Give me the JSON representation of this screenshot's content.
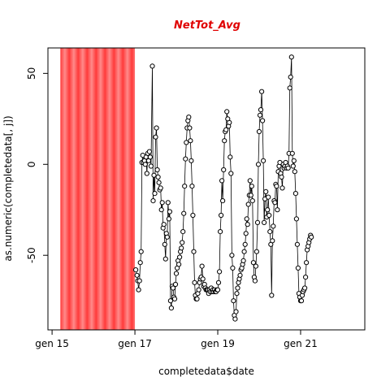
{
  "chart_data": {
    "type": "scatter",
    "title": "NetTot_Avg",
    "xlabel": "completedata$date",
    "ylabel": "as.numeric(completedata[, j])",
    "x_ticks": [
      {
        "value": 2015.0,
        "label": "gen 15"
      },
      {
        "value": 2017.0,
        "label": "gen 17"
      },
      {
        "value": 2019.0,
        "label": "gen 19"
      },
      {
        "value": 2021.0,
        "label": "gen 21"
      }
    ],
    "y_ticks": [
      {
        "value": -50,
        "label": "-50"
      },
      {
        "value": 0,
        "label": "0"
      },
      {
        "value": 50,
        "label": "50"
      }
    ],
    "xlim": [
      2014.9,
      2022.55
    ],
    "ylim": [
      -91,
      64
    ],
    "missing_band": {
      "x_start": 2015.2,
      "x_end": 2017.0,
      "color": "#ff4444"
    },
    "grid": false,
    "series": [
      {
        "values": [
          [
            2017.02,
            -58
          ],
          [
            2017.05,
            -61
          ],
          [
            2017.07,
            -64
          ],
          [
            2017.09,
            -69
          ],
          [
            2017.11,
            -64
          ],
          [
            2017.13,
            -54
          ],
          [
            2017.15,
            -48
          ],
          [
            2017.17,
            1
          ],
          [
            2017.19,
            5
          ],
          [
            2017.21,
            1
          ],
          [
            2017.23,
            2
          ],
          [
            2017.25,
            0
          ],
          [
            2017.27,
            4
          ],
          [
            2017.29,
            -5
          ],
          [
            2017.31,
            6
          ],
          [
            2017.33,
            2
          ],
          [
            2017.35,
            7
          ],
          [
            2017.37,
            4
          ],
          [
            2017.39,
            -1
          ],
          [
            2017.42,
            54
          ],
          [
            2017.44,
            -20
          ],
          [
            2017.46,
            -6
          ],
          [
            2017.48,
            -16
          ],
          [
            2017.5,
            15
          ],
          [
            2017.52,
            20
          ],
          [
            2017.54,
            -3
          ],
          [
            2017.56,
            -7
          ],
          [
            2017.58,
            -10
          ],
          [
            2017.6,
            -14
          ],
          [
            2017.62,
            -13
          ],
          [
            2017.64,
            -25
          ],
          [
            2017.66,
            -21
          ],
          [
            2017.68,
            -35
          ],
          [
            2017.7,
            -33
          ],
          [
            2017.72,
            -44
          ],
          [
            2017.74,
            -52
          ],
          [
            2017.76,
            -38
          ],
          [
            2017.78,
            -40
          ],
          [
            2017.8,
            -21
          ],
          [
            2017.82,
            -30
          ],
          [
            2017.84,
            -26
          ],
          [
            2017.86,
            -75
          ],
          [
            2017.88,
            -79
          ],
          [
            2017.9,
            -67
          ],
          [
            2017.92,
            -68
          ],
          [
            2017.94,
            -73
          ],
          [
            2017.96,
            -74
          ],
          [
            2017.98,
            -66
          ],
          [
            2018.0,
            -60
          ],
          [
            2018.02,
            -57
          ],
          [
            2018.04,
            -53
          ],
          [
            2018.06,
            -55
          ],
          [
            2018.08,
            -51
          ],
          [
            2018.1,
            -48
          ],
          [
            2018.12,
            -46
          ],
          [
            2018.14,
            -43
          ],
          [
            2018.16,
            -37
          ],
          [
            2018.18,
            -27
          ],
          [
            2018.2,
            -12
          ],
          [
            2018.22,
            3
          ],
          [
            2018.24,
            12
          ],
          [
            2018.26,
            20
          ],
          [
            2018.28,
            24
          ],
          [
            2018.3,
            26
          ],
          [
            2018.32,
            20
          ],
          [
            2018.34,
            13
          ],
          [
            2018.36,
            2
          ],
          [
            2018.38,
            -12
          ],
          [
            2018.4,
            -28
          ],
          [
            2018.42,
            -48
          ],
          [
            2018.44,
            -65
          ],
          [
            2018.46,
            -72
          ],
          [
            2018.48,
            -74
          ],
          [
            2018.5,
            -74
          ],
          [
            2018.52,
            -71
          ],
          [
            2018.54,
            -69
          ],
          [
            2018.56,
            -65
          ],
          [
            2018.58,
            -63
          ],
          [
            2018.6,
            -62
          ],
          [
            2018.62,
            -56
          ],
          [
            2018.64,
            -63
          ],
          [
            2018.66,
            -67
          ],
          [
            2018.68,
            -66
          ],
          [
            2018.7,
            -68
          ],
          [
            2018.72,
            -69
          ],
          [
            2018.74,
            -69
          ],
          [
            2018.76,
            -69
          ],
          [
            2018.78,
            -71
          ],
          [
            2018.8,
            -69
          ],
          [
            2018.82,
            -70
          ],
          [
            2018.84,
            -68
          ],
          [
            2018.86,
            -70
          ],
          [
            2018.88,
            -69
          ],
          [
            2018.9,
            -70
          ],
          [
            2018.92,
            -69
          ],
          [
            2018.94,
            -70
          ],
          [
            2018.96,
            -70
          ],
          [
            2018.98,
            -69
          ],
          [
            2019.0,
            -69
          ],
          [
            2019.02,
            -65
          ],
          [
            2019.04,
            -59
          ],
          [
            2019.06,
            -37
          ],
          [
            2019.08,
            -28
          ],
          [
            2019.1,
            -9
          ],
          [
            2019.12,
            -20
          ],
          [
            2019.14,
            -3
          ],
          [
            2019.16,
            13
          ],
          [
            2019.18,
            18
          ],
          [
            2019.2,
            19
          ],
          [
            2019.22,
            29
          ],
          [
            2019.24,
            25
          ],
          [
            2019.26,
            21
          ],
          [
            2019.28,
            23
          ],
          [
            2019.3,
            4
          ],
          [
            2019.32,
            -5
          ],
          [
            2019.34,
            -50
          ],
          [
            2019.36,
            -57
          ],
          [
            2019.38,
            -75
          ],
          [
            2019.4,
            -83
          ],
          [
            2019.42,
            -85
          ],
          [
            2019.44,
            -81
          ],
          [
            2019.46,
            -71
          ],
          [
            2019.48,
            -68
          ],
          [
            2019.5,
            -65
          ],
          [
            2019.52,
            -63
          ],
          [
            2019.54,
            -61
          ],
          [
            2019.56,
            -58
          ],
          [
            2019.58,
            -57
          ],
          [
            2019.6,
            -55
          ],
          [
            2019.62,
            -53
          ],
          [
            2019.64,
            -48
          ],
          [
            2019.66,
            -44
          ],
          [
            2019.68,
            -38
          ],
          [
            2019.7,
            -30
          ],
          [
            2019.72,
            -33
          ],
          [
            2019.74,
            -22
          ],
          [
            2019.76,
            -17
          ],
          [
            2019.78,
            -9
          ],
          [
            2019.8,
            -17
          ],
          [
            2019.82,
            -12
          ],
          [
            2019.84,
            -20
          ],
          [
            2019.86,
            -54
          ],
          [
            2019.88,
            -62
          ],
          [
            2019.9,
            -64
          ],
          [
            2019.92,
            -56
          ],
          [
            2019.94,
            -48
          ],
          [
            2019.96,
            -32
          ],
          [
            2019.98,
            0
          ],
          [
            2020.0,
            18
          ],
          [
            2020.02,
            27
          ],
          [
            2020.04,
            30
          ],
          [
            2020.06,
            40
          ],
          [
            2020.08,
            24
          ],
          [
            2020.1,
            2
          ],
          [
            2020.12,
            -32
          ],
          [
            2020.14,
            -19
          ],
          [
            2020.16,
            -15
          ],
          [
            2020.18,
            -29
          ],
          [
            2020.2,
            -25
          ],
          [
            2020.22,
            -18
          ],
          [
            2020.24,
            -28
          ],
          [
            2020.26,
            -37
          ],
          [
            2020.28,
            -44
          ],
          [
            2020.3,
            -72
          ],
          [
            2020.32,
            -42
          ],
          [
            2020.34,
            -34
          ],
          [
            2020.36,
            -20
          ],
          [
            2020.38,
            -21
          ],
          [
            2020.4,
            -11
          ],
          [
            2020.42,
            -12
          ],
          [
            2020.44,
            -25
          ],
          [
            2020.46,
            -4
          ],
          [
            2020.48,
            -1
          ],
          [
            2020.5,
            1
          ],
          [
            2020.52,
            -5
          ],
          [
            2020.54,
            -7
          ],
          [
            2020.56,
            -13
          ],
          [
            2020.58,
            0
          ],
          [
            2020.6,
            -2
          ],
          [
            2020.62,
            -1
          ],
          [
            2020.64,
            1
          ],
          [
            2020.66,
            -2
          ],
          [
            2020.68,
            -1
          ],
          [
            2020.7,
            -2
          ],
          [
            2020.72,
            6
          ],
          [
            2020.74,
            42
          ],
          [
            2020.76,
            48
          ],
          [
            2020.78,
            59
          ],
          [
            2020.8,
            6
          ],
          [
            2020.82,
            -1
          ],
          [
            2020.84,
            2
          ],
          [
            2020.86,
            -4
          ],
          [
            2020.88,
            -16
          ],
          [
            2020.9,
            -30
          ],
          [
            2020.92,
            -44
          ],
          [
            2020.94,
            -57
          ],
          [
            2020.96,
            -71
          ],
          [
            2020.98,
            -73
          ],
          [
            2021.0,
            -75
          ],
          [
            2021.02,
            -75
          ],
          [
            2021.04,
            -72
          ],
          [
            2021.06,
            -70
          ],
          [
            2021.08,
            -69
          ],
          [
            2021.1,
            -68
          ],
          [
            2021.12,
            -62
          ],
          [
            2021.14,
            -54
          ],
          [
            2021.16,
            -47
          ],
          [
            2021.18,
            -45
          ],
          [
            2021.2,
            -43
          ],
          [
            2021.22,
            -41
          ],
          [
            2021.24,
            -39
          ],
          [
            2021.26,
            -40
          ]
        ]
      }
    ]
  }
}
